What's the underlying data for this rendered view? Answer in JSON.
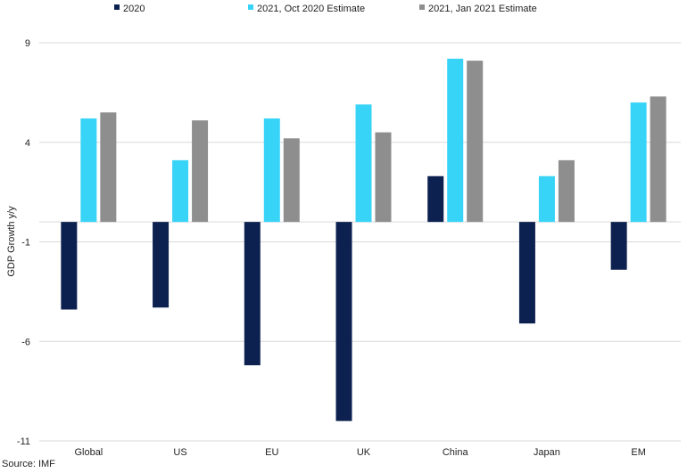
{
  "chart_data": {
    "type": "bar",
    "categories": [
      "Global",
      "US",
      "EU",
      "UK",
      "China",
      "Japan",
      "EM"
    ],
    "series": [
      {
        "name": "2020",
        "color": "#0d2150",
        "values": [
          -4.4,
          -4.3,
          -7.2,
          -10.0,
          2.3,
          -5.1,
          -2.4
        ]
      },
      {
        "name": "2021, Oct 2020 Estimate",
        "color": "#38d4f8",
        "values": [
          5.2,
          3.1,
          5.2,
          5.9,
          8.2,
          2.3,
          6.0
        ]
      },
      {
        "name": "2021, Jan 2021 Estimate",
        "color": "#8e8e8e",
        "values": [
          5.5,
          5.1,
          4.2,
          4.5,
          8.1,
          3.1,
          6.3
        ]
      }
    ],
    "ylabel": "GDP Growth y/y",
    "ylim": [
      -11,
      9
    ],
    "yticks": [
      9,
      4,
      -1,
      -6,
      -11
    ],
    "grid": true,
    "legend": "top"
  },
  "source": "Source: IMF"
}
